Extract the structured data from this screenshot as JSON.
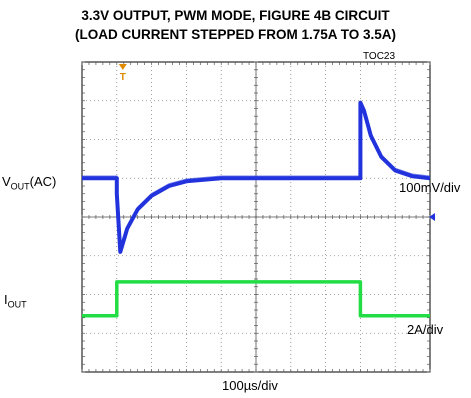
{
  "title_line1": "3.3V OUTPUT, PWM MODE, FIGURE 4B CIRCUIT",
  "title_line2": "(LOAD CURRENT STEPPED FROM 1.75A TO 3.5A)",
  "figure_id": "TOC23",
  "trigger_marker": "T",
  "labels": {
    "vout_main": "V",
    "vout_sub": "OUT",
    "vout_suffix": "(AC)",
    "iout_main": "I",
    "iout_sub": "OUT",
    "vout_scale": "100mV/div",
    "iout_scale": "2A/div",
    "time_scale": "100µs/div"
  },
  "chart_data": {
    "type": "line",
    "title": "3.3V OUTPUT, PWM MODE, FIGURE 4B CIRCUIT (LOAD CURRENT STEPPED FROM 1.75A TO 3.5A)",
    "x_unit": "µs",
    "xlim": [
      0,
      1000
    ],
    "x_divisions": 10,
    "y_divisions": 8,
    "grid": true,
    "series": [
      {
        "name": "VOUT(AC)",
        "scale": "100mV/div",
        "units": "mV",
        "color": "#2233dd",
        "x": [
          0,
          100,
          100,
          110,
          130,
          160,
          200,
          250,
          300,
          400,
          500,
          600,
          700,
          800,
          800,
          810,
          830,
          860,
          900,
          950,
          1000
        ],
        "y": [
          0,
          0,
          -40,
          -190,
          -130,
          -80,
          -45,
          -20,
          -8,
          0,
          0,
          0,
          0,
          0,
          195,
          175,
          110,
          55,
          20,
          5,
          0
        ]
      },
      {
        "name": "IOUT",
        "scale": "2A/div",
        "units": "A",
        "color": "#22dd44",
        "x": [
          0,
          100,
          100,
          800,
          800,
          1000
        ],
        "y": [
          1.75,
          1.75,
          3.5,
          3.5,
          1.75,
          1.75
        ]
      }
    ]
  }
}
